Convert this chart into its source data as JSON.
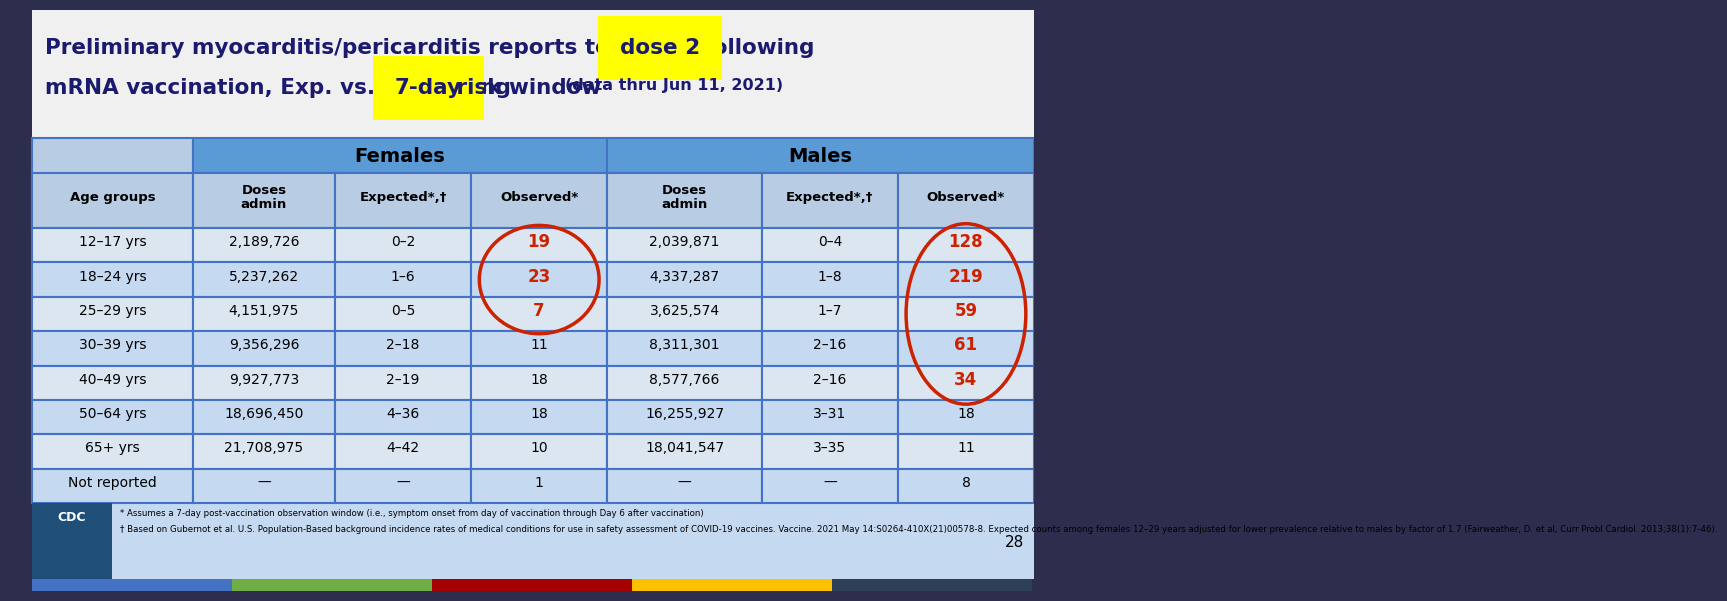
{
  "bg_color": "#2d2d4e",
  "title_bg": "#f0f0f0",
  "table_header_bg": "#5b9bd5",
  "table_subheader_bg": "#b8cce4",
  "table_row_even": "#dce6f1",
  "table_row_odd": "#c5d9f1",
  "table_border": "#4472c4",
  "footer_bg": "#c5d9f1",
  "cdc_box_bg": "#1f4e79",
  "age_groups": [
    "12–17 yrs",
    "18–24 yrs",
    "25–29 yrs",
    "30–39 yrs",
    "40–49 yrs",
    "50–64 yrs",
    "65+ yrs",
    "Not reported"
  ],
  "female_doses": [
    "2,189,726",
    "5,237,262",
    "4,151,975",
    "9,356,296",
    "9,927,773",
    "18,696,450",
    "21,708,975",
    "—"
  ],
  "female_expected": [
    "0–2",
    "1–6",
    "0–5",
    "2–18",
    "2–19",
    "4–36",
    "4–42",
    "—"
  ],
  "female_observed": [
    "19",
    "23",
    "7",
    "11",
    "18",
    "18",
    "10",
    "1"
  ],
  "female_obs_red": [
    true,
    true,
    true,
    false,
    false,
    false,
    false,
    false
  ],
  "male_doses": [
    "2,039,871",
    "4,337,287",
    "3,625,574",
    "8,311,301",
    "8,577,766",
    "16,255,927",
    "18,041,547",
    "—"
  ],
  "male_expected": [
    "0–4",
    "1–8",
    "1–7",
    "2–16",
    "2–16",
    "3–31",
    "3–35",
    "—"
  ],
  "male_observed": [
    "128",
    "219",
    "59",
    "61",
    "34",
    "18",
    "11",
    "8"
  ],
  "male_obs_red": [
    true,
    true,
    true,
    true,
    true,
    false,
    false,
    false
  ],
  "footnote1": "* Assumes a 7-day post-vaccination observation window (i.e., symptom onset from day of vaccination through Day 6 after vaccination)",
  "footnote2": "† Based on Gubernot et al. U.S. Population-Based background incidence rates of medical conditions for use in safety assessment of COVID-19 vaccines. Vaccine. 2021 May 14:S0264-410X(21)00578-8. Expected counts among females 12–29 years adjusted for lower prevalence relative to males by factor of 1.7 (Fairweather, D. et al, Curr Probl Cardiol. 2013;38(1):7-46).",
  "slide_number": "28",
  "red_circle_color": "#cc2200",
  "red_text_color": "#cc2200",
  "bottom_bar_colors": [
    "#4472c4",
    "#70ad47",
    "#a50000",
    "#ffc000",
    "#2e4057"
  ]
}
